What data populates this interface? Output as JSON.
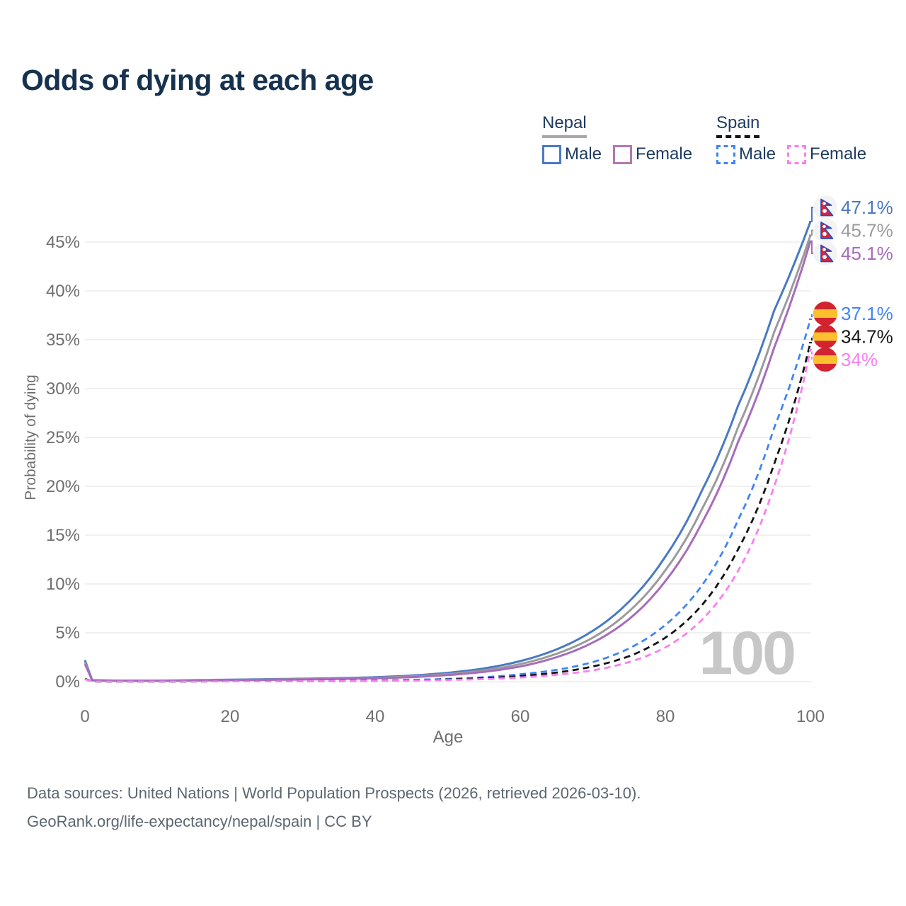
{
  "page": {
    "title": "Odds of dying at each age"
  },
  "legend": {
    "groups": [
      {
        "country": "Nepal",
        "line_style": "solid",
        "underline_color": "#a8a8a8",
        "items": [
          {
            "label": "Male",
            "color": "#4a79c4"
          },
          {
            "label": "Female",
            "color": "#b478b4"
          }
        ]
      },
      {
        "country": "Spain",
        "line_style": "dashed",
        "underline_color": "#141414",
        "items": [
          {
            "label": "Male",
            "color": "#4285f4"
          },
          {
            "label": "Female",
            "color": "#f97ef2"
          }
        ]
      }
    ]
  },
  "footer": {
    "line1": "Data sources: United Nations | World Population Prospects (2026, retrieved 2026-03-10).",
    "line2": "GeoRank.org/life-expectancy/nepal/spain | CC BY"
  },
  "ui_colors": {
    "title_text": "#16324f",
    "axis_text": "#6f6f6f",
    "grid_line": "#ececec",
    "watermark": "#c7c7c7",
    "footer_text": "#5d6771"
  },
  "chart_data": {
    "type": "line",
    "title": "Odds of dying at each age",
    "xlabel": "Age",
    "ylabel": "Probability of dying",
    "xlim": [
      0,
      100
    ],
    "ylim_percent": [
      0,
      48
    ],
    "x_ticks": [
      0,
      20,
      40,
      60,
      80,
      100
    ],
    "y_ticks_percent": [
      0,
      5,
      10,
      15,
      20,
      25,
      30,
      35,
      40,
      45
    ],
    "grid": "horizontal",
    "legend_position": "top-right",
    "watermark_label": "100",
    "ages": [
      0,
      1,
      5,
      10,
      15,
      20,
      25,
      30,
      35,
      40,
      45,
      50,
      55,
      60,
      65,
      70,
      75,
      80,
      85,
      90,
      95,
      100
    ],
    "series": [
      {
        "id": "nepal-male",
        "country": "Nepal",
        "sex": "Male",
        "flag": "nepal",
        "color": "#4a79c4",
        "dash": "solid",
        "end_label": "47.1%",
        "values_percent": [
          2.2,
          0.15,
          0.1,
          0.1,
          0.15,
          0.2,
          0.25,
          0.3,
          0.36,
          0.45,
          0.62,
          0.9,
          1.35,
          2.1,
          3.3,
          5.2,
          8.2,
          12.8,
          19.5,
          28.2,
          38.0,
          47.1
        ]
      },
      {
        "id": "nepal-both",
        "country": "Nepal",
        "sex": "Both sexes",
        "flag": "nepal",
        "color": "#9b9b9b",
        "dash": "solid",
        "end_label": "45.7%",
        "values_percent": [
          2.0,
          0.13,
          0.09,
          0.09,
          0.13,
          0.17,
          0.21,
          0.26,
          0.31,
          0.39,
          0.53,
          0.77,
          1.15,
          1.8,
          2.85,
          4.5,
          7.2,
          11.4,
          17.6,
          26.0,
          35.8,
          45.7
        ]
      },
      {
        "id": "nepal-female",
        "country": "Nepal",
        "sex": "Female",
        "flag": "nepal",
        "color": "#a76cbb",
        "dash": "solid",
        "end_label": "45.1%",
        "values_percent": [
          1.8,
          0.12,
          0.08,
          0.08,
          0.11,
          0.15,
          0.18,
          0.22,
          0.27,
          0.34,
          0.46,
          0.67,
          1.0,
          1.55,
          2.5,
          4.0,
          6.4,
          10.3,
          16.2,
          24.5,
          34.2,
          45.1
        ]
      },
      {
        "id": "spain-male",
        "country": "Spain",
        "sex": "Male",
        "flag": "spain",
        "color": "#4285f4",
        "dash": "dashed",
        "end_label": "37.1%",
        "values_percent": [
          0.3,
          0.02,
          0.01,
          0.01,
          0.02,
          0.04,
          0.05,
          0.06,
          0.08,
          0.12,
          0.18,
          0.28,
          0.45,
          0.75,
          1.2,
          2.0,
          3.4,
          5.8,
          9.8,
          16.5,
          26.0,
          37.1
        ]
      },
      {
        "id": "spain-both",
        "country": "Spain",
        "sex": "Both sexes",
        "flag": "spain",
        "color": "#141414",
        "dash": "dashed",
        "end_label": "34.7%",
        "values_percent": [
          0.27,
          0.02,
          0.01,
          0.01,
          0.02,
          0.03,
          0.04,
          0.05,
          0.06,
          0.09,
          0.14,
          0.22,
          0.35,
          0.57,
          0.93,
          1.55,
          2.6,
          4.5,
          7.8,
          13.5,
          22.3,
          34.7
        ]
      },
      {
        "id": "spain-female",
        "country": "Spain",
        "sex": "Female",
        "flag": "spain",
        "color": "#f97ef2",
        "dash": "dashed",
        "end_label": "34%",
        "values_percent": [
          0.24,
          0.02,
          0.01,
          0.01,
          0.015,
          0.025,
          0.03,
          0.04,
          0.05,
          0.07,
          0.11,
          0.17,
          0.26,
          0.42,
          0.7,
          1.15,
          2.0,
          3.5,
          6.3,
          11.3,
          20.0,
          34.0
        ]
      }
    ]
  }
}
